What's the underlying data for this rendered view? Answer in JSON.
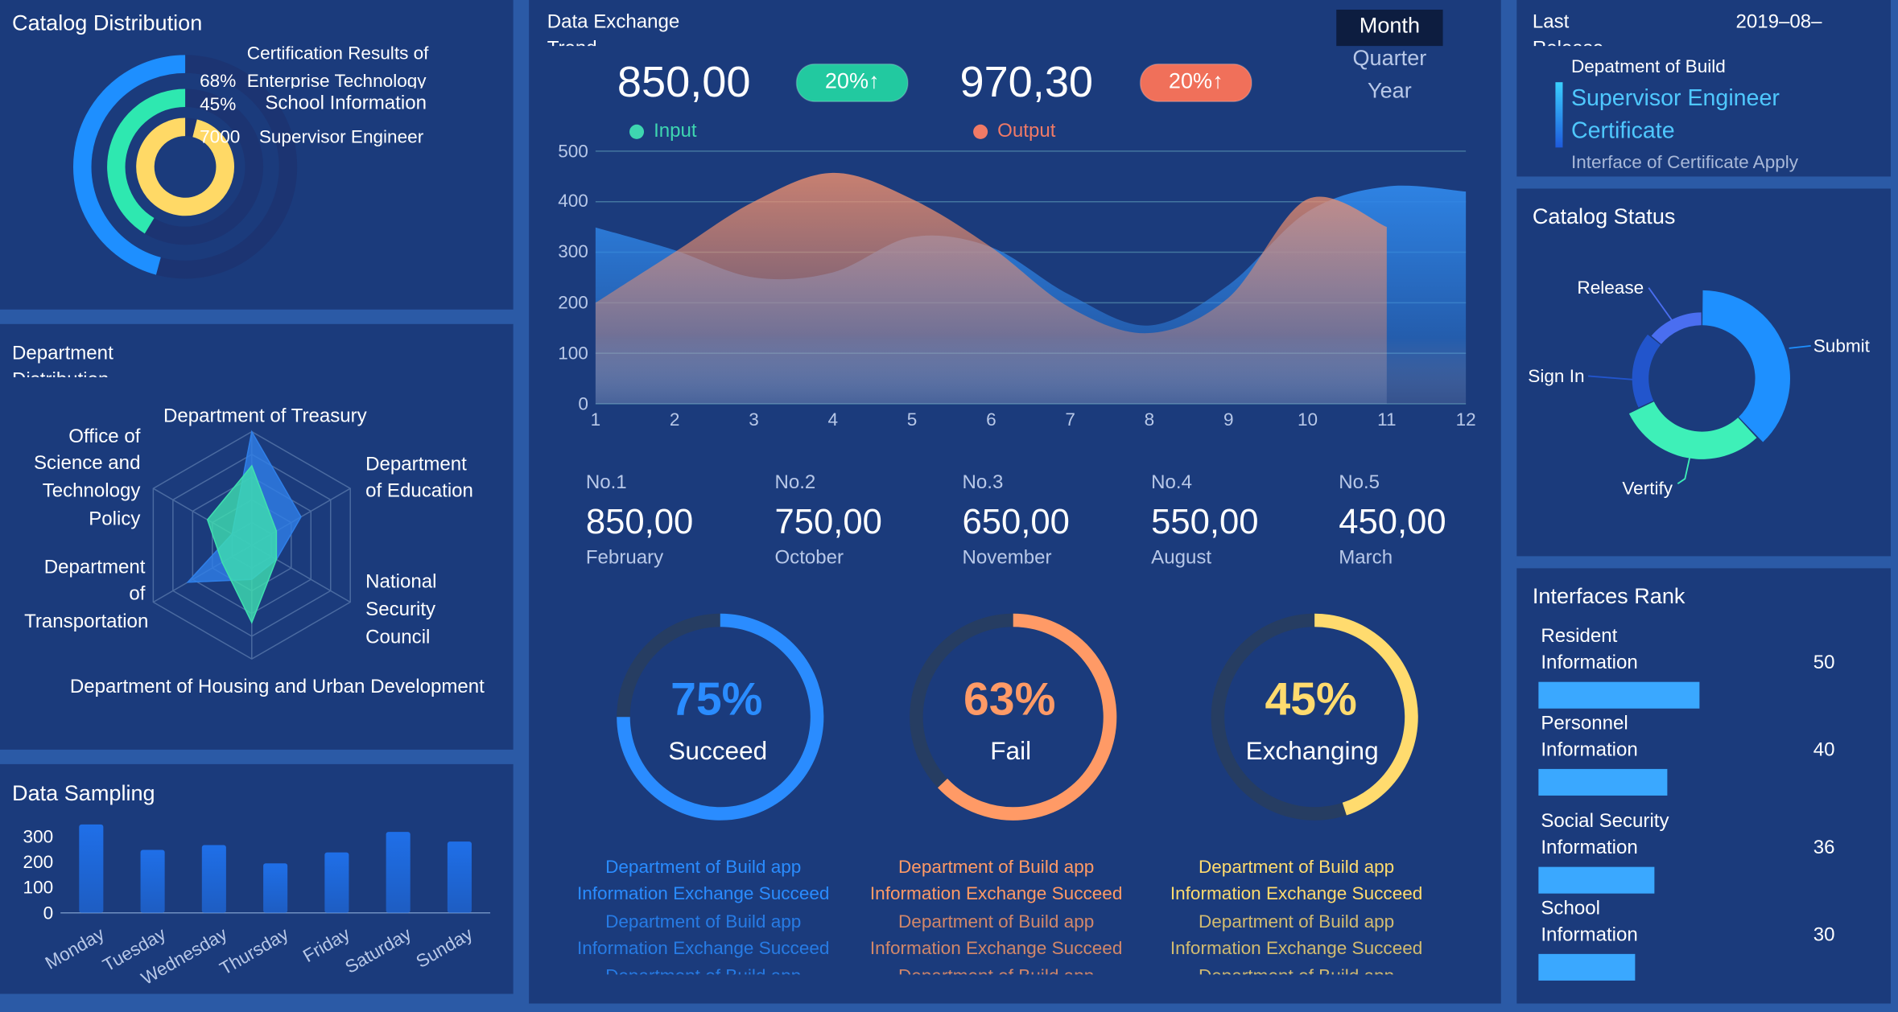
{
  "catalog_distribution": {
    "title": "Catalog Distribution",
    "chart": {
      "type": "radial-bar",
      "categories": [
        "Certification Results of Enterprise Technology",
        "School Information",
        "Supervisor Engineer"
      ],
      "values": [
        68,
        45,
        7000
      ],
      "value_labels": [
        "68%",
        "45%",
        "7000"
      ],
      "colors": [
        "#1e8fff",
        "#2ee8b0",
        "#ffd966"
      ],
      "rlim": [
        1,
        10000
      ],
      "log_scale": true
    }
  },
  "department_distribution": {
    "title": "Department Distribution",
    "chart": {
      "type": "radar",
      "categories": [
        "Department of Treasury",
        "Department of Education",
        "National Security Council",
        "Department of Housing and Urban Development",
        "Department of Transportation",
        "Office of Science and Technology Policy"
      ],
      "series": [
        {
          "color": "#2f7fe8",
          "values": [
            100,
            50,
            25,
            30,
            65,
            20
          ]
        },
        {
          "color": "#3ee0b0",
          "values": [
            70,
            25,
            25,
            68,
            30,
            45
          ]
        }
      ],
      "rlim": [
        0,
        100
      ],
      "rticks": [
        20,
        40,
        60,
        80,
        100
      ]
    }
  },
  "data_sampling": {
    "title": "Data Sampling",
    "chart": {
      "type": "bar",
      "categories": [
        "Monday",
        "Tuesday",
        "Wednesday",
        "Thursday",
        "Friday",
        "Saturday",
        "Sunday"
      ],
      "values": [
        348,
        248,
        267,
        195,
        238,
        319,
        281
      ],
      "color": "#1f6fe8",
      "ylim": [
        0,
        350
      ],
      "yticks": [
        0,
        100,
        200,
        300
      ]
    }
  },
  "data_exchange": {
    "title": "Data Exchange Trend",
    "periods": [
      "Month",
      "Quarter",
      "Year"
    ],
    "selected_period": 0,
    "stats": [
      {
        "value": "850,00",
        "change": "20%↑",
        "color": "#22c9a0"
      },
      {
        "value": "970,30",
        "change": "20%↑",
        "color": "#f0705a"
      }
    ],
    "chart": {
      "type": "area",
      "x": [
        1,
        2,
        3,
        4,
        5,
        6,
        7,
        8,
        9,
        10,
        11,
        12
      ],
      "xlim": [
        1,
        12
      ],
      "xticks": [
        1,
        2,
        3,
        4,
        5,
        6,
        7,
        8,
        9,
        10,
        11,
        12
      ],
      "ylim": [
        0,
        500
      ],
      "yticks": [
        0,
        100,
        200,
        300,
        400,
        500
      ],
      "grid": true,
      "series": [
        {
          "name": "Input",
          "color": "#2f86e8",
          "marker_color": "#3ed6b0",
          "values": [
            349,
            304,
            250,
            260,
            330,
            310,
            215,
            155,
            235,
            380,
            430,
            420
          ]
        },
        {
          "name": "Output",
          "color": "#f0906e",
          "marker_color": "#f07a66",
          "values": [
            200,
            300,
            400,
            457,
            405,
            310,
            190,
            140,
            210,
            405,
            350,
            null
          ]
        }
      ]
    },
    "ranks": [
      {
        "rank": "No.1",
        "value": "850,00",
        "month": "February"
      },
      {
        "rank": "No.2",
        "value": "750,00",
        "month": "October"
      },
      {
        "rank": "No.3",
        "value": "650,00",
        "month": "November"
      },
      {
        "rank": "No.4",
        "value": "550,00",
        "month": "August"
      },
      {
        "rank": "No.5",
        "value": "450,00",
        "month": "March"
      }
    ],
    "gauges": [
      {
        "type": "gauge",
        "value": 75,
        "value_label": "75%",
        "label": "Succeed",
        "color": "#2a8cff",
        "messages": [
          "Department of Build app",
          "Information Exchange Succeed",
          "Department of Build app",
          "Information Exchange Succeed",
          "Department of Build app"
        ]
      },
      {
        "type": "gauge",
        "value": 63,
        "value_label": "63%",
        "label": "Fail",
        "color": "#ff9a66",
        "messages": [
          "Department of Build app",
          "Information Exchange Succeed",
          "Department of Build app",
          "Information Exchange Succeed",
          "Department of Build app"
        ]
      },
      {
        "type": "gauge",
        "value": 45,
        "value_label": "45%",
        "label": "Exchanging",
        "color": "#ffdb6e",
        "messages": [
          "Department of Build app",
          "Information Exchange Succeed",
          "Department of Build app",
          "Information Exchange Succeed",
          "Department of Build app"
        ]
      }
    ]
  },
  "last_release": {
    "title": "Last Release",
    "date": "2019–08–",
    "department": "Depatment of Build",
    "name": "Supervisor Engineer Certificate",
    "interface": "Interface of Certificate Apply"
  },
  "catalog_status": {
    "title": "Catalog Status",
    "chart": {
      "type": "rose-donut",
      "categories": [
        "Submit",
        "Vertify",
        "Sign In",
        "Release"
      ],
      "values": [
        38,
        30,
        18,
        14
      ],
      "colors": [
        "#1e90ff",
        "#3ef0b8",
        "#2255cc",
        "#4a6ef0"
      ]
    }
  },
  "interfaces_rank": {
    "title": "Interfaces Rank",
    "chart": {
      "type": "hbar",
      "categories": [
        "Resident Information",
        "Personnel Information",
        "Social Security Information",
        "School Information"
      ],
      "values": [
        50,
        40,
        36,
        30
      ],
      "xlim": [
        0,
        100
      ],
      "color": "#3aa8ff"
    }
  }
}
